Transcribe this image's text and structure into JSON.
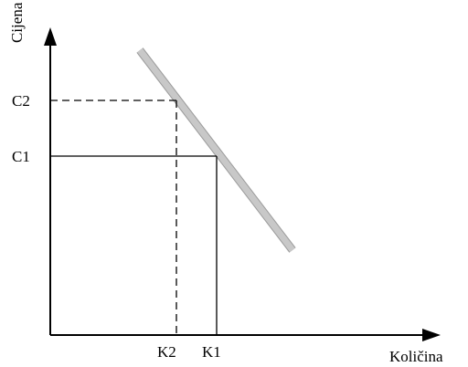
{
  "axes": {
    "y_label": "Cijena",
    "x_label": "Količina"
  },
  "price_ticks": [
    {
      "label": "C2",
      "style": "dashed"
    },
    {
      "label": "C1",
      "style": "solid"
    }
  ],
  "quantity_ticks": [
    {
      "label": "K2",
      "style": "dashed"
    },
    {
      "label": "K1",
      "style": "solid"
    }
  ],
  "colors": {
    "axis": "#000000",
    "demand_line": "#c8c8c8",
    "background": "#ffffff"
  }
}
